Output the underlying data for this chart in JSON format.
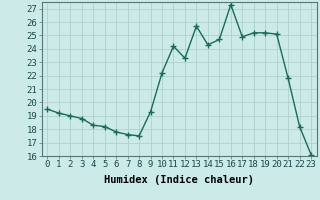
{
  "x": [
    0,
    1,
    2,
    3,
    4,
    5,
    6,
    7,
    8,
    9,
    10,
    11,
    12,
    13,
    14,
    15,
    16,
    17,
    18,
    19,
    20,
    21,
    22,
    23
  ],
  "y": [
    19.5,
    19.2,
    19.0,
    18.8,
    18.3,
    18.2,
    17.8,
    17.6,
    17.5,
    19.3,
    22.2,
    24.2,
    23.3,
    25.7,
    24.3,
    24.7,
    27.3,
    24.9,
    25.2,
    25.2,
    25.1,
    21.8,
    18.2,
    16.1
  ],
  "line_color": "#1a6b5a",
  "marker": "+",
  "marker_size": 4.0,
  "marker_lw": 1.0,
  "line_width": 1.0,
  "bg_color": "#cceae7",
  "grid_color": "#b0d0cc",
  "xlabel": "Humidex (Indice chaleur)",
  "tick_fontsize": 6.5,
  "xlabel_fontsize": 7.5,
  "ylim": [
    16,
    27.5
  ],
  "xlim": [
    -0.5,
    23.5
  ],
  "yticks": [
    16,
    17,
    18,
    19,
    20,
    21,
    22,
    23,
    24,
    25,
    26,
    27
  ],
  "xticks": [
    0,
    1,
    2,
    3,
    4,
    5,
    6,
    7,
    8,
    9,
    10,
    11,
    12,
    13,
    14,
    15,
    16,
    17,
    18,
    19,
    20,
    21,
    22,
    23
  ]
}
